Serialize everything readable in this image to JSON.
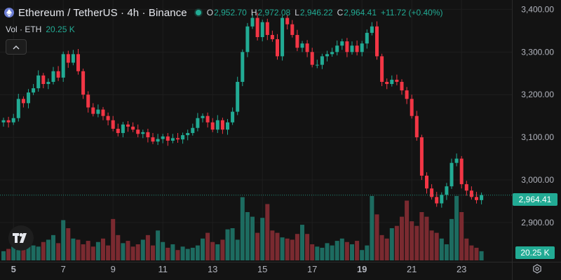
{
  "header": {
    "symbol_icon": "ethereum-icon",
    "title": "Ethereum / TetherUS · 4h · Binance",
    "ohlc": {
      "o_label": "O",
      "o_value": "2,952.70",
      "h_label": "H",
      "h_value": "2,972.08",
      "l_label": "L",
      "l_value": "2,946.22",
      "c_label": "C",
      "c_value": "2,964.41",
      "change": "+11.72 (+0.40%)"
    }
  },
  "volume_legend": {
    "label": "Vol · ETH",
    "value": "20.25 K"
  },
  "price_tag": "2,964.41",
  "volume_tag": "20.25 K",
  "colors": {
    "up": "#22ab94",
    "down": "#f23645",
    "up_vol": "#1d6b60",
    "down_vol": "#7a2a30",
    "background": "#131313"
  },
  "chart_data": {
    "type": "candlestick",
    "interval": "4h",
    "x_tick_labels": [
      "5",
      "7",
      "9",
      "11",
      "13",
      "15",
      "17",
      "19",
      "21",
      "23"
    ],
    "x_tick_candle_index": [
      2,
      12,
      22,
      32,
      42,
      52,
      62,
      72,
      82,
      92
    ],
    "bold_x_ticks": [
      "5",
      "19"
    ],
    "y_tick_labels": [
      "3,400.00",
      "3,300.00",
      "3,200.00",
      "3,100.00",
      "3,000.00",
      "2,900.00"
    ],
    "y_ticks": [
      3400,
      3300,
      3200,
      3100,
      3000,
      2900
    ],
    "ylim": [
      2808,
      3422
    ],
    "last_price": 2964.41,
    "grid": true,
    "closes": [
      3140,
      3135,
      3145,
      3190,
      3180,
      3205,
      3215,
      3245,
      3225,
      3230,
      3255,
      3240,
      3295,
      3275,
      3295,
      3255,
      3200,
      3170,
      3155,
      3165,
      3150,
      3140,
      3120,
      3110,
      3130,
      3125,
      3118,
      3108,
      3112,
      3100,
      3090,
      3096,
      3102,
      3092,
      3098,
      3095,
      3105,
      3110,
      3122,
      3145,
      3150,
      3135,
      3118,
      3140,
      3118,
      3135,
      3160,
      3230,
      3300,
      3360,
      3380,
      3335,
      3370,
      3340,
      3330,
      3290,
      3380,
      3365,
      3340,
      3310,
      3320,
      3300,
      3270,
      3270,
      3290,
      3295,
      3300,
      3315,
      3325,
      3300,
      3315,
      3300,
      3320,
      3345,
      3360,
      3290,
      3230,
      3225,
      3235,
      3230,
      3210,
      3190,
      3150,
      3100,
      3010,
      2980,
      2960,
      2945,
      2965,
      2985,
      3040,
      3050,
      2990,
      2975,
      2960,
      2952.7,
      2964.41
    ],
    "volumes": [
      8,
      10,
      12,
      9,
      11,
      14,
      13,
      12,
      16,
      18,
      22,
      15,
      35,
      28,
      19,
      18,
      14,
      17,
      12,
      16,
      19,
      13,
      36,
      22,
      15,
      17,
      12,
      14,
      18,
      22,
      13,
      26,
      16,
      11,
      14,
      9,
      12,
      10,
      11,
      13,
      19,
      24,
      16,
      14,
      18,
      27,
      28,
      18,
      55,
      42,
      38,
      24,
      37,
      49,
      26,
      24,
      20,
      19,
      18,
      23,
      31,
      23,
      14,
      12,
      11,
      15,
      13,
      17,
      19,
      16,
      14,
      17,
      9,
      13,
      56,
      40,
      22,
      19,
      28,
      30,
      38,
      52,
      34,
      30,
      42,
      38,
      26,
      24,
      19,
      14,
      36,
      56,
      42,
      19,
      13,
      11,
      8
    ]
  }
}
